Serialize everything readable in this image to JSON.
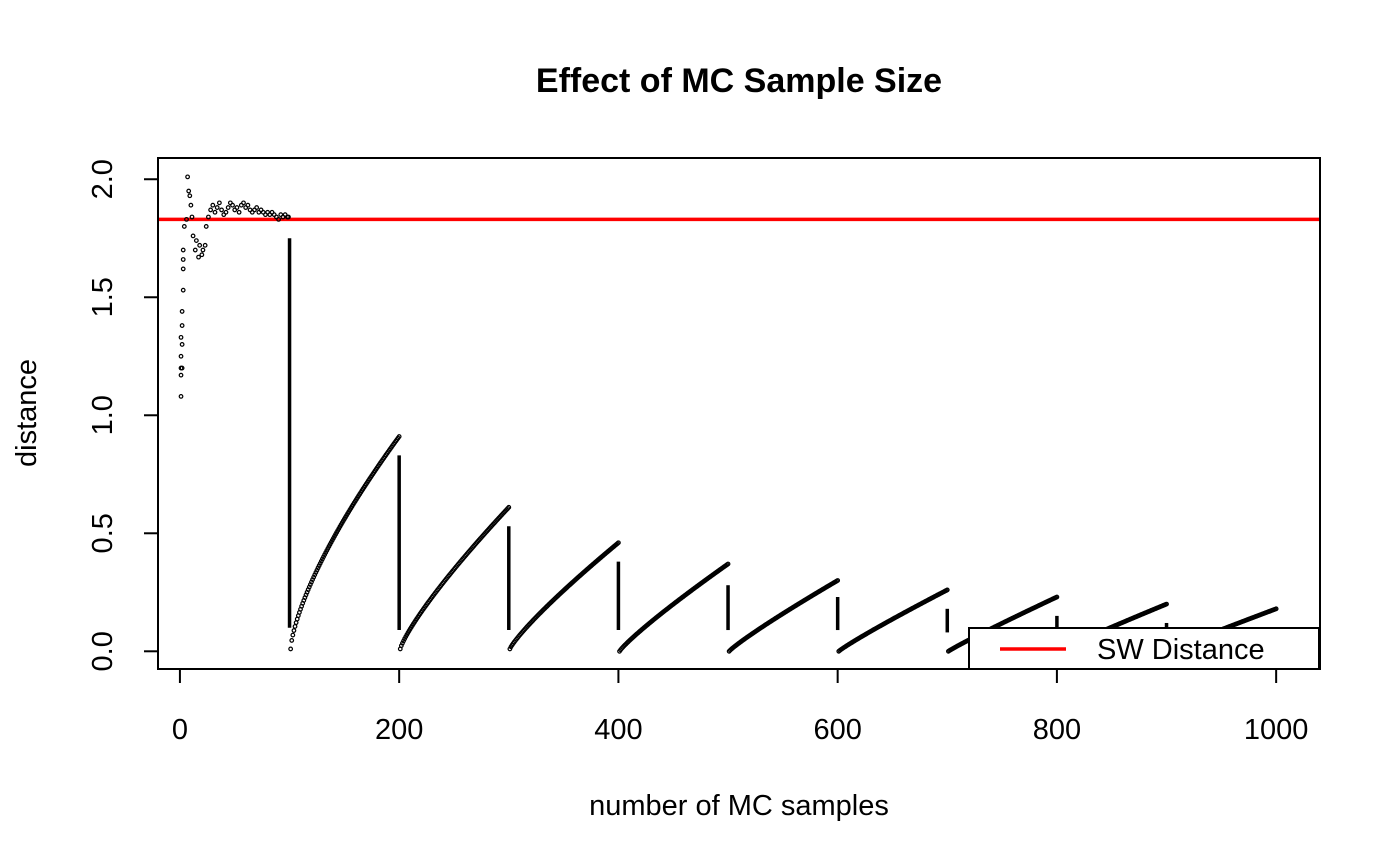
{
  "chart_data": {
    "type": "scatter",
    "title": "Effect of MC Sample Size",
    "xlabel": "number of MC samples",
    "ylabel": "distance",
    "xlim": [
      -20,
      1040
    ],
    "ylim": [
      -0.075,
      2.09
    ],
    "x_ticks": [
      0,
      200,
      400,
      600,
      800,
      1000
    ],
    "x_tick_labels": [
      "0",
      "200",
      "400",
      "600",
      "800",
      "1000"
    ],
    "y_ticks": [
      0.0,
      0.5,
      1.0,
      1.5,
      2.0
    ],
    "y_tick_labels": [
      "0.0",
      "0.5",
      "1.0",
      "1.5",
      "2.0"
    ],
    "grid": false,
    "legend": {
      "position": "bottom-right",
      "entries": [
        {
          "label": "SW Distance",
          "color": "#ff0000"
        }
      ]
    },
    "reference_line": {
      "name": "SW Distance",
      "y": 1.83,
      "color": "#ff0000"
    },
    "series": [
      {
        "color": "#000000",
        "marker": "open-circle",
        "note_style": "points",
        "points": [
          [
            1,
            1.08
          ],
          [
            1,
            1.17
          ],
          [
            1,
            1.2
          ],
          [
            1,
            1.25
          ],
          [
            1,
            1.33
          ],
          [
            2,
            1.2
          ],
          [
            2,
            1.3
          ],
          [
            2,
            1.38
          ],
          [
            2,
            1.44
          ],
          [
            3,
            1.53
          ],
          [
            3,
            1.62
          ],
          [
            3,
            1.66
          ],
          [
            3,
            1.7
          ],
          [
            4,
            1.8
          ],
          [
            6,
            1.83
          ],
          [
            7,
            2.01
          ],
          [
            8,
            1.95
          ],
          [
            9,
            1.93
          ],
          [
            10,
            1.89
          ],
          [
            11,
            1.84
          ],
          [
            12,
            1.76
          ],
          [
            14,
            1.7
          ],
          [
            15,
            1.74
          ],
          [
            17,
            1.67
          ],
          [
            18,
            1.72
          ],
          [
            20,
            1.68
          ],
          [
            21,
            1.7
          ],
          [
            23,
            1.72
          ],
          [
            24,
            1.8
          ],
          [
            26,
            1.84
          ],
          [
            28,
            1.87
          ],
          [
            30,
            1.89
          ],
          [
            32,
            1.86
          ],
          [
            34,
            1.88
          ],
          [
            36,
            1.9
          ],
          [
            38,
            1.87
          ],
          [
            40,
            1.85
          ],
          [
            42,
            1.86
          ],
          [
            44,
            1.88
          ],
          [
            46,
            1.9
          ],
          [
            48,
            1.89
          ],
          [
            50,
            1.87
          ],
          [
            52,
            1.88
          ],
          [
            54,
            1.86
          ],
          [
            56,
            1.89
          ],
          [
            58,
            1.9
          ],
          [
            60,
            1.88
          ],
          [
            62,
            1.89
          ],
          [
            64,
            1.87
          ],
          [
            66,
            1.86
          ],
          [
            68,
            1.87
          ],
          [
            70,
            1.88
          ],
          [
            72,
            1.86
          ],
          [
            74,
            1.87
          ],
          [
            76,
            1.86
          ],
          [
            78,
            1.85
          ],
          [
            80,
            1.86
          ],
          [
            82,
            1.85
          ],
          [
            84,
            1.86
          ],
          [
            86,
            1.85
          ],
          [
            88,
            1.84
          ],
          [
            90,
            1.83
          ],
          [
            92,
            1.85
          ],
          [
            94,
            1.84
          ],
          [
            96,
            1.85
          ],
          [
            98,
            1.84
          ],
          [
            99,
            1.84
          ]
        ]
      }
    ],
    "segments": [
      {
        "x_start": 100,
        "x_end": 200,
        "y_drop_from": 1.75,
        "y_drop_to": 0.1,
        "y_start": 0.01,
        "y_end": 0.91,
        "curve": 0.7
      },
      {
        "x_start": 200,
        "x_end": 300,
        "y_drop_from": 0.83,
        "y_drop_to": 0.09,
        "y_start": 0.01,
        "y_end": 0.61,
        "curve": 0.82
      },
      {
        "x_start": 300,
        "x_end": 400,
        "y_drop_from": 0.53,
        "y_drop_to": 0.09,
        "y_start": 0.01,
        "y_end": 0.46,
        "curve": 0.85
      },
      {
        "x_start": 400,
        "x_end": 500,
        "y_drop_from": 0.38,
        "y_drop_to": 0.09,
        "y_start": 0.0,
        "y_end": 0.37,
        "curve": 0.88
      },
      {
        "x_start": 500,
        "x_end": 600,
        "y_drop_from": 0.28,
        "y_drop_to": 0.09,
        "y_start": 0.0,
        "y_end": 0.3,
        "curve": 0.9
      },
      {
        "x_start": 600,
        "x_end": 700,
        "y_drop_from": 0.23,
        "y_drop_to": 0.09,
        "y_start": 0.0,
        "y_end": 0.26,
        "curve": 0.92
      },
      {
        "x_start": 700,
        "x_end": 800,
        "y_drop_from": 0.18,
        "y_drop_to": 0.08,
        "y_start": 0.0,
        "y_end": 0.23,
        "curve": 0.94
      },
      {
        "x_start": 800,
        "x_end": 900,
        "y_drop_from": 0.15,
        "y_drop_to": 0.08,
        "y_start": 0.0,
        "y_end": 0.2,
        "curve": 0.95
      },
      {
        "x_start": 900,
        "x_end": 1000,
        "y_drop_from": 0.12,
        "y_drop_to": 0.08,
        "y_start": 0.0,
        "y_end": 0.18,
        "curve": 0.96
      }
    ]
  }
}
